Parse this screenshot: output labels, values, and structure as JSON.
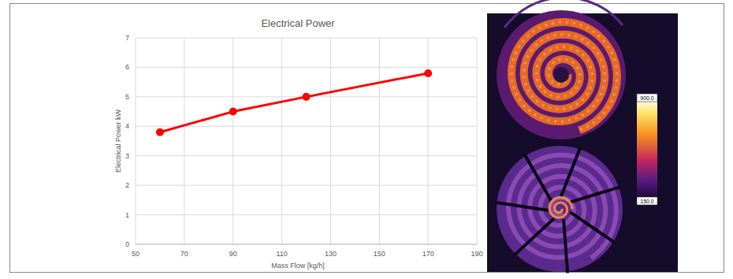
{
  "chart_data": [
    {
      "type": "line",
      "title": "Electrical Power",
      "x_label": "Mass Flow [kg/h]",
      "y_label": "Electrical Power kW",
      "x": [
        60,
        90,
        120,
        170
      ],
      "values": [
        3.8,
        4.5,
        5.0,
        5.8
      ],
      "color": "#ff0000",
      "marker": "circle",
      "line_style": "solid",
      "xlim": [
        50,
        190
      ],
      "xticks": [
        50,
        70,
        90,
        110,
        130,
        150,
        170,
        190
      ],
      "ylim": [
        0,
        7
      ],
      "yticks": [
        0,
        1,
        2,
        3,
        4,
        5,
        6,
        7
      ],
      "grid": true
    },
    {
      "type": "thermal_image",
      "clim": [
        150,
        900
      ],
      "cticks": [
        {
          "value": 900,
          "label": "900.0"
        },
        {
          "value": 150,
          "label": "150.0"
        }
      ]
    }
  ]
}
